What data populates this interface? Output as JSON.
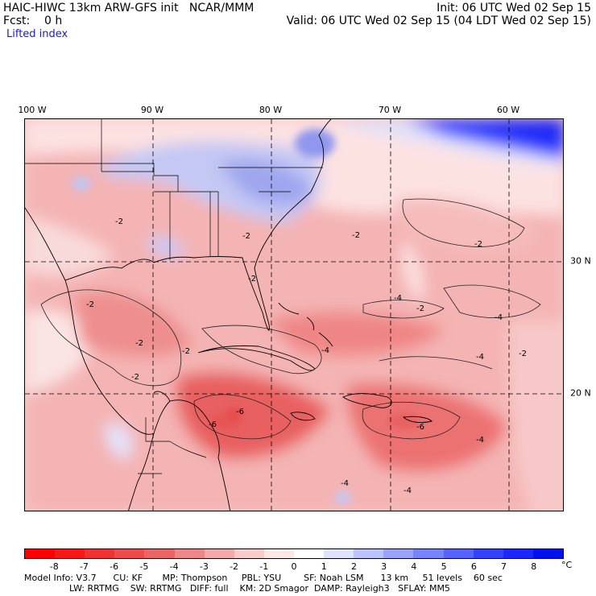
{
  "header": {
    "title": "HAIC-HIWC 13km ARW-GFS init   NCAR/MMM",
    "init": "Init: 06 UTC Wed 02 Sep 15",
    "fcst": "Fcst:    0 h",
    "valid": "Valid: 06 UTC Wed 02 Sep 15 (04 LDT Wed 02 Sep 15)",
    "field": "Lifted index"
  },
  "map": {
    "lon_labels": [
      "100 W",
      "90 W",
      "80 W",
      "70 W",
      "60 W"
    ],
    "lat_labels": [
      "30 N",
      "20 N"
    ],
    "contour_labels": [
      "-2",
      "-2",
      "-2",
      "-2",
      "-2",
      "-2",
      "-2",
      "-2",
      "-4",
      "-4",
      "-4",
      "-4",
      "-4",
      "-6",
      "-6",
      "-6",
      "-2",
      "-2",
      "-2",
      "-4",
      "-4"
    ]
  },
  "colorbar": {
    "labels": [
      "-8",
      "-7",
      "-6",
      "-5",
      "-4",
      "-3",
      "-2",
      "-1",
      "0",
      "1",
      "2",
      "3",
      "4",
      "5",
      "6",
      "7",
      "8"
    ],
    "unit": "°C",
    "colors": [
      "#ff0000",
      "#f71818",
      "#f13232",
      "#ec4c4c",
      "#ea6666",
      "#ee8888",
      "#f4aaaa",
      "#f9cccc",
      "#fde8e8",
      "#ffffff",
      "#dfe3ff",
      "#bcc4ff",
      "#9aa4ff",
      "#7884ff",
      "#5564ff",
      "#3342ff",
      "#1a28ff",
      "#0010ee"
    ]
  },
  "model_info": {
    "line1": "Model Info: V3.7      CU: KF       MP: Thompson     PBL: YSU        SF: Noah LSM      13 km     51 levels    60 sec",
    "line2": "                LW: RRTMG    SW: RRTMG   DIFF: full    KM: 2D Smagor  DAMP: Rayleigh3   SFLAY: MM5"
  }
}
